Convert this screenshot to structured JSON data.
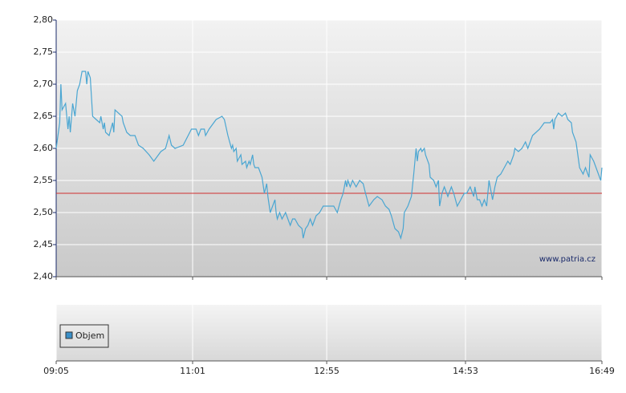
{
  "chart_data": {
    "type": "line",
    "ylim": [
      2.4,
      2.8
    ],
    "yticks": [
      {
        "value": 2.4,
        "label": "2,40"
      },
      {
        "value": 2.45,
        "label": "2,45"
      },
      {
        "value": 2.5,
        "label": "2,50"
      },
      {
        "value": 2.55,
        "label": "2,55"
      },
      {
        "value": 2.6,
        "label": "2,60"
      },
      {
        "value": 2.65,
        "label": "2,65"
      },
      {
        "value": 2.7,
        "label": "2,70"
      },
      {
        "value": 2.75,
        "label": "2,75"
      },
      {
        "value": 2.8,
        "label": "2,80"
      }
    ],
    "xlim": [
      "09:05",
      "16:49"
    ],
    "xticks": [
      "09:05",
      "11:01",
      "12:55",
      "14:53",
      "16:49"
    ],
    "grid": true,
    "reference_line": {
      "value": 2.53,
      "color": "#d03030"
    },
    "watermark": "www.patria.cz",
    "volume_legend": {
      "name": "Objem",
      "color": "#3a8fc8"
    },
    "series": [
      {
        "color": "#4aa6d2",
        "x": [
          "09:05",
          "09:08",
          "09:09",
          "09:10",
          "09:13",
          "09:15",
          "09:16",
          "09:17",
          "09:19",
          "09:21",
          "09:23",
          "09:25",
          "09:27",
          "09:30",
          "09:31",
          "09:32",
          "09:34",
          "09:35",
          "09:36",
          "09:39",
          "09:42",
          "09:43",
          "09:45",
          "09:46",
          "09:47",
          "09:50",
          "09:53",
          "09:54",
          "09:55",
          "10:01",
          "10:02",
          "10:05",
          "10:08",
          "10:12",
          "10:15",
          "10:19",
          "10:24",
          "10:28",
          "10:34",
          "10:38",
          "10:41",
          "10:43",
          "10:46",
          "10:53",
          "11:00",
          "11:04",
          "11:06",
          "11:08",
          "11:11",
          "11:12",
          "11:15",
          "11:21",
          "11:26",
          "11:28",
          "11:31",
          "11:34",
          "11:35",
          "11:36",
          "11:38",
          "11:39",
          "11:42",
          "11:43",
          "11:46",
          "11:47",
          "11:49",
          "11:50",
          "11:52",
          "11:53",
          "11:54",
          "11:57",
          "12:00",
          "12:02",
          "12:04",
          "12:05",
          "12:07",
          "12:09",
          "12:11",
          "12:12",
          "12:13",
          "12:15",
          "12:17",
          "12:20",
          "12:22",
          "12:24",
          "12:26",
          "12:28",
          "12:31",
          "12:34",
          "12:35",
          "12:37",
          "12:39",
          "12:41",
          "12:43",
          "12:46",
          "12:49",
          "12:52",
          "12:56",
          "12:58",
          "13:01",
          "13:04",
          "13:07",
          "13:09",
          "13:11",
          "13:12",
          "13:13",
          "13:15",
          "13:17",
          "13:20",
          "13:23",
          "13:26",
          "13:28",
          "13:31",
          "13:35",
          "13:38",
          "13:42",
          "13:45",
          "13:48",
          "13:50",
          "13:53",
          "13:56",
          "13:58",
          "14:00",
          "14:01",
          "14:04",
          "14:07",
          "14:09",
          "14:11",
          "14:12",
          "14:13",
          "14:15",
          "14:16",
          "14:18",
          "14:19",
          "14:22",
          "14:23",
          "14:26",
          "14:28",
          "14:30",
          "14:31",
          "14:33",
          "14:35",
          "14:38",
          "14:41",
          "14:43",
          "14:46",
          "14:49",
          "14:52",
          "14:54",
          "14:57",
          "15:00",
          "15:01",
          "15:03",
          "15:05",
          "15:07",
          "15:09",
          "15:11",
          "15:13",
          "15:15",
          "15:16",
          "15:18",
          "15:20",
          "15:23",
          "15:26",
          "15:29",
          "15:31",
          "15:34",
          "15:35",
          "15:38",
          "15:41",
          "15:44",
          "15:46",
          "15:48",
          "15:50",
          "15:56",
          "16:00",
          "16:05",
          "16:07",
          "16:08",
          "16:09",
          "16:12",
          "16:15",
          "16:18",
          "16:20",
          "16:23",
          "16:24",
          "16:27",
          "16:30",
          "16:33",
          "16:35",
          "16:38",
          "16:39",
          "16:42",
          "16:44",
          "16:46",
          "16:48",
          "16:49"
        ],
        "values": [
          2.6,
          2.64,
          2.7,
          2.66,
          2.67,
          2.63,
          2.65,
          2.625,
          2.67,
          2.65,
          2.69,
          2.7,
          2.72,
          2.72,
          2.7,
          2.72,
          2.71,
          2.68,
          2.65,
          2.645,
          2.64,
          2.65,
          2.63,
          2.64,
          2.625,
          2.62,
          2.64,
          2.625,
          2.66,
          2.65,
          2.64,
          2.625,
          2.62,
          2.62,
          2.605,
          2.6,
          2.59,
          2.58,
          2.595,
          2.6,
          2.62,
          2.605,
          2.6,
          2.605,
          2.63,
          2.63,
          2.62,
          2.63,
          2.63,
          2.62,
          2.63,
          2.645,
          2.65,
          2.645,
          2.62,
          2.6,
          2.605,
          2.595,
          2.6,
          2.58,
          2.59,
          2.575,
          2.58,
          2.57,
          2.58,
          2.575,
          2.59,
          2.575,
          2.57,
          2.57,
          2.555,
          2.53,
          2.545,
          2.525,
          2.5,
          2.51,
          2.52,
          2.5,
          2.49,
          2.5,
          2.49,
          2.5,
          2.49,
          2.48,
          2.49,
          2.49,
          2.48,
          2.475,
          2.46,
          2.475,
          2.48,
          2.49,
          2.48,
          2.495,
          2.5,
          2.51,
          2.51,
          2.51,
          2.51,
          2.5,
          2.52,
          2.53,
          2.55,
          2.54,
          2.55,
          2.54,
          2.55,
          2.54,
          2.55,
          2.545,
          2.53,
          2.51,
          2.52,
          2.525,
          2.52,
          2.51,
          2.505,
          2.495,
          2.475,
          2.47,
          2.46,
          2.475,
          2.5,
          2.51,
          2.525,
          2.56,
          2.6,
          2.58,
          2.595,
          2.6,
          2.595,
          2.6,
          2.59,
          2.575,
          2.555,
          2.55,
          2.54,
          2.55,
          2.51,
          2.53,
          2.54,
          2.525,
          2.54,
          2.53,
          2.51,
          2.52,
          2.53,
          2.53,
          2.54,
          2.525,
          2.54,
          2.52,
          2.52,
          2.51,
          2.52,
          2.51,
          2.55,
          2.53,
          2.52,
          2.54,
          2.555,
          2.56,
          2.57,
          2.58,
          2.575,
          2.59,
          2.6,
          2.595,
          2.6,
          2.61,
          2.6,
          2.61,
          2.62,
          2.63,
          2.64,
          2.64,
          2.645,
          2.63,
          2.645,
          2.655,
          2.65,
          2.655,
          2.645,
          2.64,
          2.625,
          2.61,
          2.57,
          2.56,
          2.57,
          2.555,
          2.59,
          2.58,
          2.57,
          2.56,
          2.55,
          2.57
        ]
      }
    ]
  }
}
